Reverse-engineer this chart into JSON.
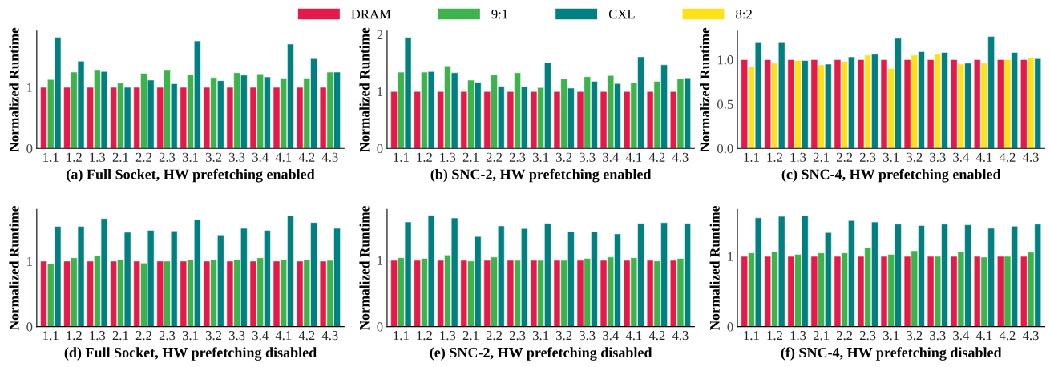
{
  "chart_data": [
    {
      "type": "bar",
      "xlabel": "(a) Full Socket, HW prefetching enabled",
      "ylabel": "Normalized Runtime",
      "legend": "top",
      "grid": false,
      "categories": [
        "1.1",
        "1.2",
        "1.3",
        "2.1",
        "2.2",
        "2.3",
        "3.1",
        "3.2",
        "3.3",
        "3.4",
        "4.1",
        "4.2",
        "4.3"
      ],
      "ylim": [
        0,
        1.92
      ],
      "yticks": [
        0,
        1
      ],
      "series": [
        {
          "name": "DRAM",
          "color": "#e6194b",
          "values": [
            1,
            1,
            1,
            1,
            1,
            1,
            1,
            1,
            1,
            1,
            1,
            1,
            1
          ]
        },
        {
          "name": "9:1",
          "color": "#3cb44b",
          "values": [
            1.13,
            1.25,
            1.29,
            1.07,
            1.23,
            1.29,
            1.21,
            1.16,
            1.24,
            1.22,
            1.15,
            1.15,
            1.25
          ]
        },
        {
          "name": "CXL",
          "color": "#008080",
          "values": [
            1.82,
            1.43,
            1.26,
            1.0,
            1.12,
            1.06,
            1.76,
            1.11,
            1.2,
            1.17,
            1.71,
            1.47,
            1.25
          ]
        }
      ]
    },
    {
      "type": "bar",
      "xlabel": "(b) SNC-2, HW prefetching enabled",
      "ylabel": "Normalized Runtime",
      "legend": "top",
      "grid": false,
      "categories": [
        "1.1",
        "1.2",
        "1.3",
        "2.1",
        "2.2",
        "2.3",
        "3.1",
        "3.2",
        "3.3",
        "3.4",
        "4.1",
        "4.2",
        "4.3"
      ],
      "ylim": [
        0,
        2.06
      ],
      "yticks": [
        0,
        1,
        2
      ],
      "series": [
        {
          "name": "DRAM",
          "color": "#e6194b",
          "values": [
            1,
            1,
            1,
            1,
            1,
            1,
            1,
            1,
            1,
            1,
            1,
            1,
            1
          ]
        },
        {
          "name": "9:1",
          "color": "#3cb44b",
          "values": [
            1.34,
            1.34,
            1.45,
            1.2,
            1.29,
            1.33,
            1.07,
            1.22,
            1.26,
            1.28,
            1.15,
            1.18,
            1.23
          ]
        },
        {
          "name": "CXL",
          "color": "#008080",
          "values": [
            1.95,
            1.35,
            1.33,
            1.16,
            1.09,
            1.08,
            1.51,
            1.06,
            1.18,
            1.14,
            1.61,
            1.47,
            1.24
          ]
        }
      ]
    },
    {
      "type": "bar",
      "xlabel": "(c) SNC-4, HW prefetching enabled",
      "ylabel": "Normalized Runtime",
      "legend": "top",
      "grid": false,
      "categories": [
        "1.1",
        "1.2",
        "1.3",
        "2.1",
        "2.2",
        "2.3",
        "3.1",
        "3.2",
        "3.3",
        "3.4",
        "4.1",
        "4.2",
        "4.3"
      ],
      "ylim": [
        0,
        1.32
      ],
      "yticks": [
        {
          "value": 0,
          "label": "0.0"
        },
        0.5,
        {
          "value": 1,
          "label": "1.0"
        }
      ],
      "series": [
        {
          "name": "DRAM",
          "color": "#e6194b",
          "values": [
            1,
            1,
            1,
            1,
            1,
            1,
            1,
            1,
            1,
            1,
            1,
            1,
            1
          ]
        },
        {
          "name": "8:2",
          "color": "#ffe119",
          "values": [
            0.92,
            0.96,
            0.99,
            0.94,
            0.98,
            1.05,
            0.9,
            1.05,
            1.06,
            0.95,
            0.96,
            1.0,
            1.02
          ]
        },
        {
          "name": "CXL",
          "color": "#008080",
          "values": [
            1.19,
            1.19,
            0.99,
            0.95,
            1.03,
            1.06,
            1.24,
            1.09,
            1.08,
            0.96,
            1.26,
            1.08,
            1.01
          ]
        }
      ]
    },
    {
      "type": "bar",
      "xlabel": "(d) Full Socket, HW prefetching disabled",
      "ylabel": "Normalized Runtime",
      "legend": "top",
      "grid": false,
      "categories": [
        "1.1",
        "1.2",
        "1.3",
        "2.1",
        "2.2",
        "2.3",
        "3.1",
        "3.2",
        "3.3",
        "3.4",
        "4.1",
        "4.2",
        "4.3"
      ],
      "ylim": [
        0,
        1.79
      ],
      "yticks": [
        0,
        1
      ],
      "series": [
        {
          "name": "DRAM",
          "color": "#e6194b",
          "values": [
            1,
            1,
            1,
            1,
            1,
            1,
            1,
            1,
            1,
            1,
            1,
            1,
            1
          ]
        },
        {
          "name": "9:1",
          "color": "#3cb44b",
          "values": [
            0.96,
            1.05,
            1.08,
            1.02,
            0.97,
            1.0,
            1.02,
            1.02,
            1.02,
            1.05,
            1.02,
            1.02,
            1.01
          ]
        },
        {
          "name": "CXL",
          "color": "#008080",
          "values": [
            1.53,
            1.53,
            1.65,
            1.44,
            1.47,
            1.46,
            1.63,
            1.4,
            1.5,
            1.47,
            1.69,
            1.59,
            1.5
          ]
        }
      ]
    },
    {
      "type": "bar",
      "xlabel": "(e) SNC-2, HW prefetching disabled",
      "ylabel": "Normalized Runtime",
      "legend": "top",
      "grid": false,
      "categories": [
        "1.1",
        "1.2",
        "1.3",
        "2.1",
        "2.2",
        "2.3",
        "3.1",
        "3.2",
        "3.3",
        "3.4",
        "4.1",
        "4.2",
        "4.3"
      ],
      "ylim": [
        0,
        1.77
      ],
      "yticks": [
        0,
        1
      ],
      "series": [
        {
          "name": "DRAM",
          "color": "#e6194b",
          "values": [
            1,
            1,
            1,
            1,
            1,
            1,
            1,
            1,
            1,
            1,
            1,
            1,
            1
          ]
        },
        {
          "name": "9:1",
          "color": "#3cb44b",
          "values": [
            1.04,
            1.03,
            1.08,
            0.99,
            1.05,
            1.0,
            1.0,
            1.0,
            1.03,
            1.05,
            1.04,
            0.99,
            1.03
          ]
        },
        {
          "name": "CXL",
          "color": "#008080",
          "values": [
            1.58,
            1.68,
            1.64,
            1.36,
            1.52,
            1.48,
            1.56,
            1.43,
            1.43,
            1.4,
            1.56,
            1.57,
            1.56
          ]
        }
      ]
    },
    {
      "type": "bar",
      "xlabel": "(f) SNC-4, HW prefetching disabled",
      "ylabel": "Normalized Runtime",
      "legend": "top",
      "grid": false,
      "categories": [
        "1.1",
        "1.2",
        "1.3",
        "2.1",
        "2.2",
        "2.3",
        "3.1",
        "3.2",
        "3.3",
        "3.4",
        "4.1",
        "4.2",
        "4.3"
      ],
      "ylim": [
        0,
        1.67
      ],
      "yticks": [
        0,
        1
      ],
      "series": [
        {
          "name": "DRAM",
          "color": "#e6194b",
          "values": [
            1,
            1,
            1,
            1,
            1,
            1,
            1,
            1,
            1,
            1,
            1,
            1,
            1
          ]
        },
        {
          "name": "9:1",
          "color": "#3cb44b",
          "values": [
            1.05,
            1.07,
            1.03,
            1.05,
            1.05,
            1.12,
            1.03,
            1.08,
            1.0,
            1.07,
            0.99,
            1.0,
            1.06
          ]
        },
        {
          "name": "CXL",
          "color": "#008080",
          "values": [
            1.55,
            1.57,
            1.58,
            1.34,
            1.51,
            1.49,
            1.46,
            1.44,
            1.46,
            1.45,
            1.4,
            1.43,
            1.46
          ]
        }
      ]
    }
  ]
}
